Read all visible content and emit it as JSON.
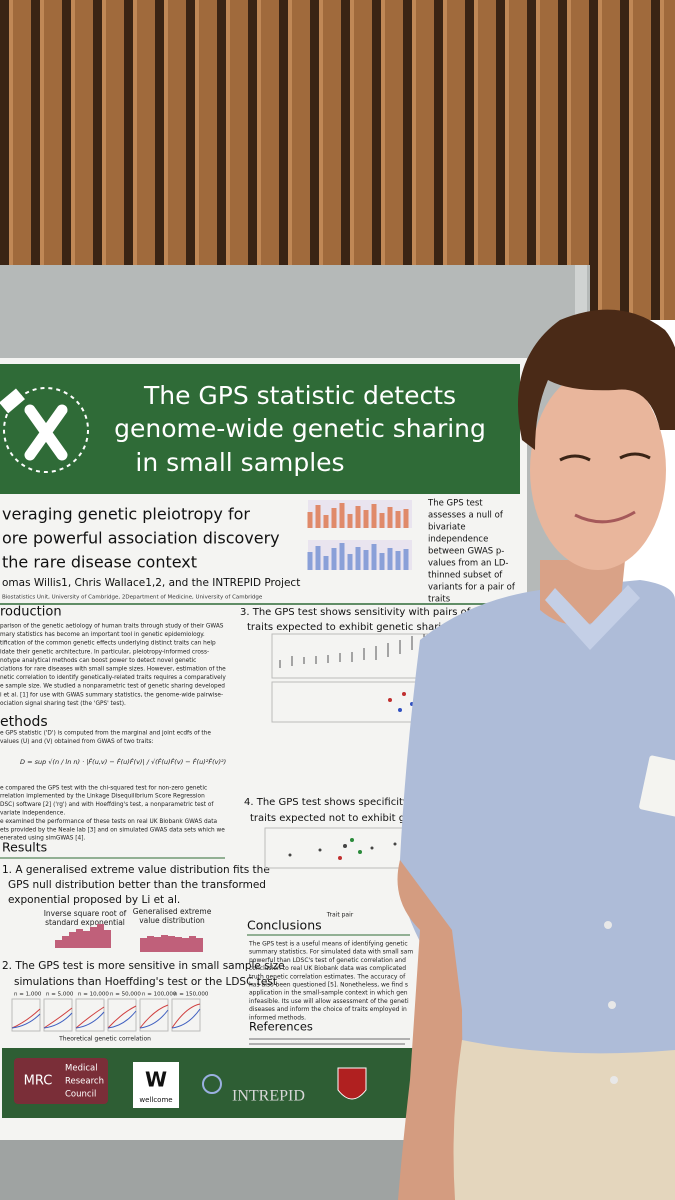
{
  "poster": {
    "title": [
      "The GPS statistic detects",
      "genome-wide genetic sharing",
      "in small samples"
    ],
    "subtitle": [
      "veraging genetic pleiotropy for",
      "ore powerful association discovery",
      "the rare disease context"
    ],
    "authors": "omas Willis1, Chris Wallace1,2, and the INTREPID Project",
    "affiliation": "Biostatistics Unit, University of Cambridge, 2Department of Medicine, University of Cambridge",
    "summary": [
      "The GPS test",
      "assesses a null of",
      "bivariate",
      "independence",
      "between GWAS p-",
      "values from an LD-",
      "thinned subset of",
      "variants for a pair of",
      "traits"
    ],
    "introduction": {
      "heading": "roduction",
      "body": [
        "parison of the genetic aetiology of human traits through study of their GWAS",
        "mary statistics has become an important tool in genetic epidemiology.",
        "tification of the common genetic effects underlying distinct traits can help",
        "idate their genetic architecture. In particular, pleiotropy-informed cross-",
        "notype analytical methods can boost power to detect novel genetic",
        "ciations for rare diseases with small sample sizes. However, estimation of the",
        "netic correlation to identify genetically-related traits requires a comparatively",
        "e sample size. We studied a nonparametric test of genetic sharing developed",
        "i et al. [1] for use with GWAS summary statistics, the genome-wide pairwise-",
        "ociation signal sharing test (the 'GPS' test)."
      ]
    },
    "methods": {
      "heading": "ethods",
      "body": [
        "e GPS statistic ('D') is computed from the marginal and joint ecdfs of the",
        "values (U) and (V) obtained from GWAS of two traits:",
        "e compared the GPS test with the chi-squared test for non-zero genetic",
        "rrelation implemented by the Linkage Disequilibrium Score Regression",
        "DSC) software [2] ('rg') and with Hoeffding's test, a nonparametric test of",
        "variate independence.",
        "e examined the performance of these tests on real UK Biobank GWAS data",
        "ets provided by the Neale lab [3] and on simulated GWAS data sets which we",
        "enerated using simGWAS [4]."
      ]
    },
    "results": {
      "heading": "Results",
      "r1": [
        "1. A generalised extreme value distribution fits the",
        "GPS null distribution better than the transformed",
        "exponential proposed by Li et al."
      ],
      "r1_panels": [
        "Inverse square root of",
        "standard exponential",
        "Generalised extreme",
        "value distribution"
      ],
      "r2": [
        "2. The GPS test is more sensitive in small sample size",
        "simulations than Hoeffding's test or the LDSC test"
      ],
      "r2_panels": [
        "n = 1,000",
        "n = 5,000",
        "n = 10,000",
        "n = 50,000",
        "n = 100,000",
        "n = 150,000"
      ],
      "r2_axis": "Theoretical genetic correlation",
      "r3": [
        "3. The GPS test shows sensitivity with pairs of UK Biobank",
        "traits expected to exhibit genetic sharing"
      ],
      "r4": [
        "4. The GPS test shows specificity with",
        "traits expected not to exhibit genetic s"
      ],
      "trait_pair": "Trait pair"
    },
    "conclusions": {
      "heading": "Conclusions",
      "body": [
        "The GPS test is a useful means of identifying genetic",
        "summary statistics. For simulated data with small sam",
        "powerful than LDSC's test of genetic correlation and",
        "conclusion to real UK Biobank data was complicated",
        "truth genetic correlation estimates. The accuracy of",
        "has also been questioned [5]. Nonetheless, we find s",
        "application in the small-sample context in which gen",
        "infeasible. Its use will allow assessment of the geneti",
        "diseases and inform the choice of traits employed in",
        "informed methods."
      ]
    },
    "references": {
      "heading": "References"
    },
    "logos": {
      "mrc": "MRC",
      "mrc_name": [
        "Medical",
        "Research",
        "Council"
      ],
      "wellcome_mark": "W",
      "wellcome": "wellcome",
      "intrepid": "INTREPID"
    }
  }
}
